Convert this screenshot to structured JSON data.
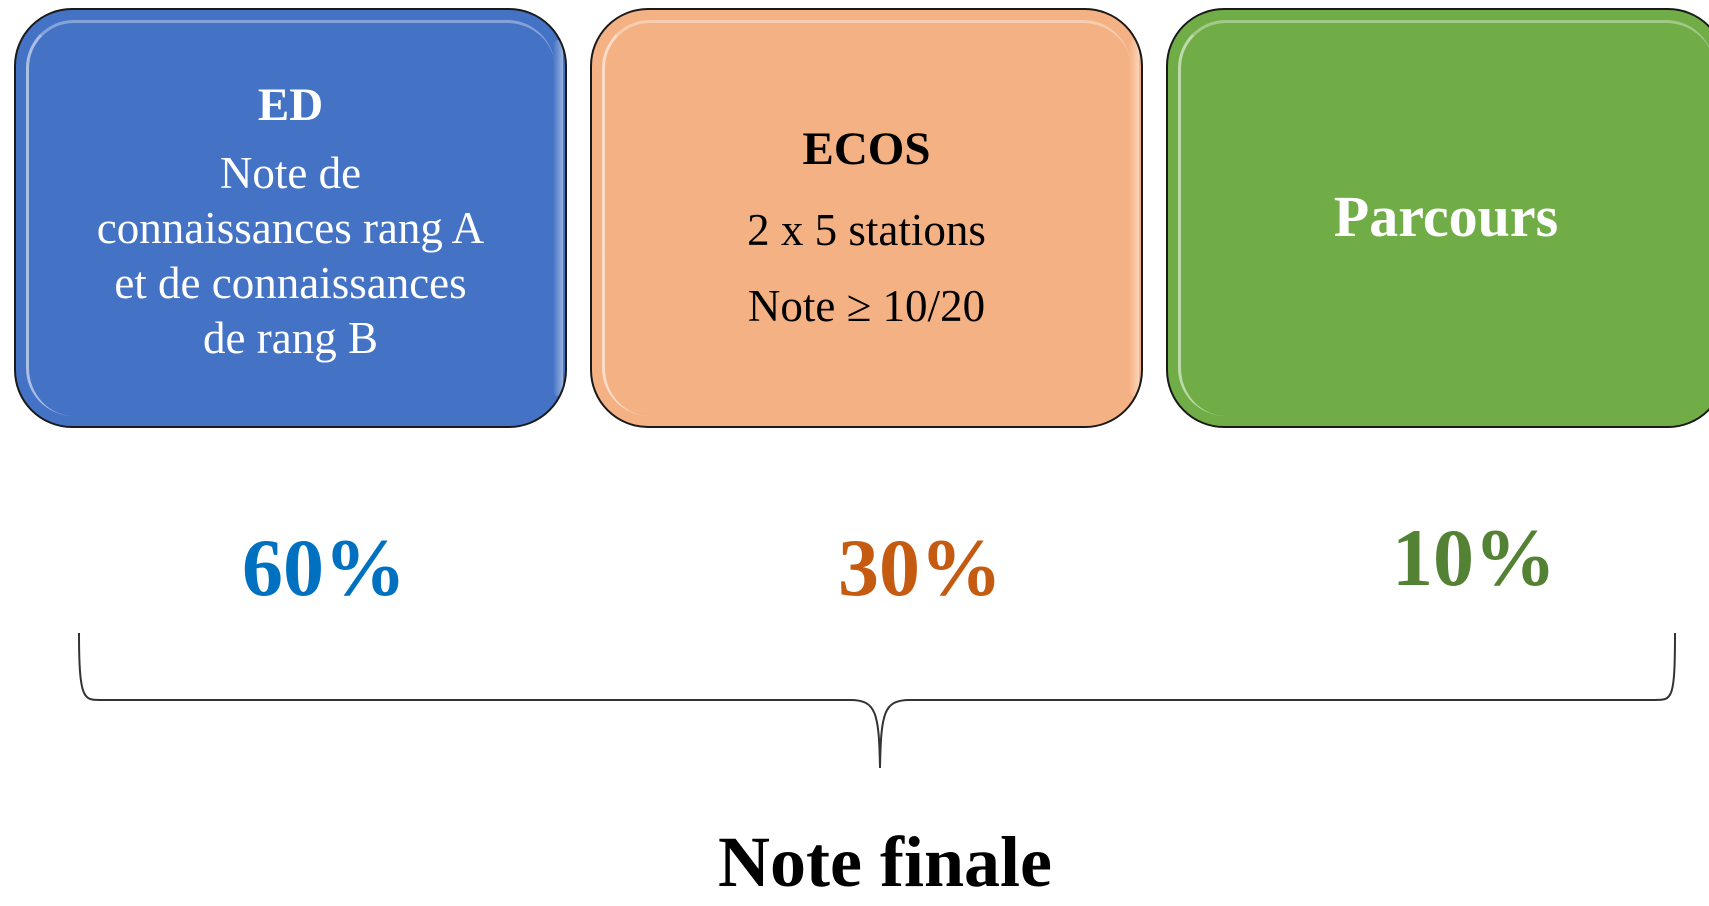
{
  "boxes": {
    "ed": {
      "title": "ED",
      "lines": [
        "Note de",
        "connaissances rang A",
        "et de connaissances",
        "de rang B"
      ],
      "color": "#4472c4"
    },
    "ecos": {
      "title": "ECOS",
      "lines": [
        "2 x 5 stations",
        "Note ≥ 10/20"
      ],
      "color": "#f4b183"
    },
    "parcours": {
      "title": "Parcours",
      "color": "#70ad47"
    }
  },
  "weights": {
    "ed": {
      "label": "60%",
      "color": "#0070c0"
    },
    "ecos": {
      "label": "30%",
      "color": "#c55a11"
    },
    "parcours": {
      "label": "10%",
      "color": "#548235"
    }
  },
  "result": {
    "label": "Note finale"
  }
}
